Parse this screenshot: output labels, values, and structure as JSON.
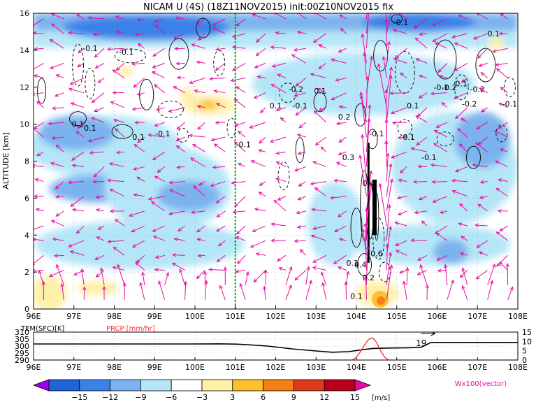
{
  "title": "NICAM U (4S) (18Z11NOV2015) init:00Z10NOV2015 fix",
  "chart_data": [
    {
      "type": "heatmap",
      "title": "NICAM U (4S) (18Z11NOV2015) init:00Z10NOV2015 fix",
      "xlabel": "",
      "ylabel": "ALTITUDE [km]",
      "x_ticks": [
        "96E",
        "97E",
        "98E",
        "99E",
        "100E",
        "101E",
        "102E",
        "103E",
        "104E",
        "105E",
        "106E",
        "107E",
        "108E"
      ],
      "x_range": [
        96,
        108
      ],
      "y_ticks": [
        "0",
        "2",
        "4",
        "6",
        "8",
        "10",
        "12",
        "14",
        "16"
      ],
      "y_range": [
        0,
        16
      ],
      "grid": true,
      "marker_line": {
        "lon": 101.0,
        "color": "#00b000"
      },
      "contour_labels": [
        {
          "text": "-0.1",
          "lon": 105.1,
          "alt": 15.5
        },
        {
          "text": "0.1",
          "lon": 107.4,
          "alt": 14.9
        },
        {
          "text": "-0.1",
          "lon": 97.4,
          "alt": 14.1
        },
        {
          "text": "-0.1",
          "lon": 98.3,
          "alt": 13.9
        },
        {
          "text": "-0.2",
          "lon": 102.5,
          "alt": 11.9
        },
        {
          "text": "0.1",
          "lon": 103.1,
          "alt": 11.8
        },
        {
          "text": "-0.1",
          "lon": 106.1,
          "alt": 12.0
        },
        {
          "text": "-0.2",
          "lon": 106.3,
          "alt": 12.0
        },
        {
          "text": "-0.2",
          "lon": 107.0,
          "alt": 11.9
        },
        {
          "text": "0.1",
          "lon": 102.0,
          "alt": 11.0
        },
        {
          "text": "-0.1",
          "lon": 102.6,
          "alt": 11.0
        },
        {
          "text": "0.1",
          "lon": 105.4,
          "alt": 11.0
        },
        {
          "text": "0.1",
          "lon": 106.6,
          "alt": 12.2
        },
        {
          "text": "-0.2",
          "lon": 106.8,
          "alt": 11.1
        },
        {
          "text": "-0.1",
          "lon": 107.8,
          "alt": 11.1
        },
        {
          "text": "0.2",
          "lon": 103.7,
          "alt": 10.4
        },
        {
          "text": "0.1",
          "lon": 97.1,
          "alt": 10.0
        },
        {
          "text": "0.1",
          "lon": 97.4,
          "alt": 9.8
        },
        {
          "text": "0.1",
          "lon": 98.6,
          "alt": 9.3
        },
        {
          "text": "-0.1",
          "lon": 99.2,
          "alt": 9.5
        },
        {
          "text": "-0.1",
          "lon": 104.5,
          "alt": 9.5
        },
        {
          "text": "0.1",
          "lon": 105.3,
          "alt": 9.3
        },
        {
          "text": "-0.1",
          "lon": 101.2,
          "alt": 8.9
        },
        {
          "text": "0.3",
          "lon": 103.8,
          "alt": 8.2
        },
        {
          "text": "-0.1",
          "lon": 105.8,
          "alt": 8.2
        },
        {
          "text": "0.4",
          "lon": 104.3,
          "alt": 6.8
        },
        {
          "text": "0.6",
          "lon": 104.5,
          "alt": 3.0
        },
        {
          "text": "0.1",
          "lon": 103.9,
          "alt": 2.5
        },
        {
          "text": "0.4",
          "lon": 104.1,
          "alt": 2.4
        },
        {
          "text": "0.2",
          "lon": 104.3,
          "alt": 1.7
        },
        {
          "text": "0.1",
          "lon": 104.0,
          "alt": 0.7
        }
      ]
    },
    {
      "type": "line",
      "left_label": "TEM(SFC)[K]",
      "right_label": "PRCP [mm/hr]",
      "left_ticks": [
        "310",
        "305",
        "300",
        "295",
        "290"
      ],
      "left_range": [
        290,
        310
      ],
      "right_ticks": [
        "15",
        "10",
        "5",
        "0"
      ],
      "right_range": [
        0,
        15
      ],
      "x_ticks": [
        "96E",
        "97E",
        "98E",
        "99E",
        "100E",
        "101E",
        "102E",
        "103E",
        "104E",
        "105E",
        "106E",
        "107E",
        "108E"
      ],
      "x_range": [
        96,
        108
      ],
      "annotation": "19",
      "series": [
        {
          "name": "TEM(SFC)[K]",
          "color": "#000000",
          "x": [
            96,
            97,
            98,
            99,
            100,
            100.6,
            101,
            101.3,
            101.8,
            102.4,
            103.0,
            103.4,
            103.8,
            104.1,
            104.4,
            104.8,
            105.3,
            105.6,
            105.85,
            106,
            107,
            108
          ],
          "y": [
            301.5,
            301.5,
            301.5,
            301.5,
            301.5,
            301.6,
            301.4,
            301.0,
            300.0,
            298.0,
            296.5,
            295.6,
            296.0,
            297.2,
            298.3,
            298.6,
            298.8,
            299.1,
            302.6,
            302.6,
            302.6,
            302.6
          ]
        },
        {
          "name": "PRCP [mm/hr]",
          "color": "#ff2a2a",
          "x": [
            96,
            103.9,
            104.0,
            104.1,
            104.2,
            104.3,
            104.4,
            104.5,
            104.6,
            104.7,
            104.8,
            108
          ],
          "y": [
            0,
            0,
            1.5,
            4.5,
            8.0,
            11.0,
            12.0,
            9.5,
            5.0,
            1.5,
            0,
            0
          ]
        }
      ]
    }
  ],
  "colorbar": {
    "levels": [
      "−15",
      "−12",
      "−9",
      "−6",
      "−3",
      "3",
      "6",
      "9",
      "12",
      "15"
    ],
    "colors": [
      "#a000e6",
      "#1f63d6",
      "#3b82e8",
      "#7cb3ee",
      "#b5e6f7",
      "#ffffff",
      "#fff0a8",
      "#fcc030",
      "#f47f14",
      "#e03a1b",
      "#b8001c",
      "#e80aa0"
    ],
    "unit": "[m/s]"
  },
  "vector_label": "Wx100(vector)"
}
